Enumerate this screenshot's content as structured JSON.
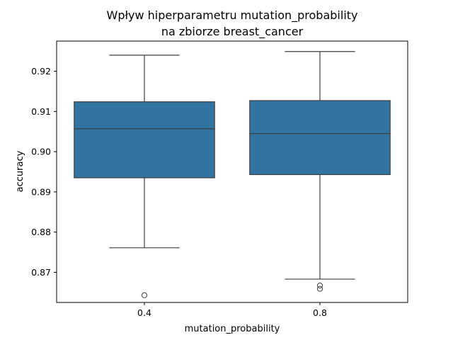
{
  "chart_data": {
    "type": "box",
    "title": "Wpływ hiperparametru mutation_probability\nna zbiorze breast_cancer",
    "xlabel": "mutation_probability",
    "ylabel": "accuracy",
    "ylim": [
      0.8625,
      0.9275
    ],
    "yticks": [
      0.87,
      0.88,
      0.89,
      0.9,
      0.91,
      0.92
    ],
    "ytick_labels": [
      "0.87",
      "0.88",
      "0.89",
      "0.90",
      "0.91",
      "0.92"
    ],
    "categories": [
      "0.4",
      "0.8"
    ],
    "boxes": [
      {
        "category": "0.4",
        "whisker_low": 0.8761,
        "q1": 0.8935,
        "median": 0.9057,
        "q3": 0.9124,
        "whisker_high": 0.924,
        "outliers": [
          0.8643
        ]
      },
      {
        "category": "0.8",
        "whisker_low": 0.8683,
        "q1": 0.8943,
        "median": 0.9045,
        "q3": 0.9127,
        "whisker_high": 0.9249,
        "outliers": [
          0.8667,
          0.8659
        ]
      }
    ],
    "colors": {
      "box_fill": "#3274a1",
      "line": "#3d3d3d"
    }
  }
}
